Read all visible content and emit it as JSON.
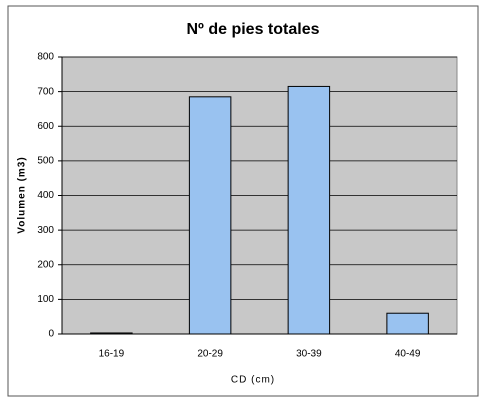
{
  "chart_data": {
    "type": "bar",
    "title": "Nº de pies totales",
    "x_label": "CD (cm)",
    "y_label": "Volumen (m3)",
    "categories": [
      "16-19",
      "20-29",
      "30-39",
      "40-49"
    ],
    "values": [
      3,
      685,
      715,
      60
    ],
    "color": "#99c2f0",
    "ylim": [
      0,
      800
    ],
    "yticks": [
      0,
      100,
      200,
      300,
      400,
      500,
      600,
      700,
      800
    ],
    "grid": true
  }
}
